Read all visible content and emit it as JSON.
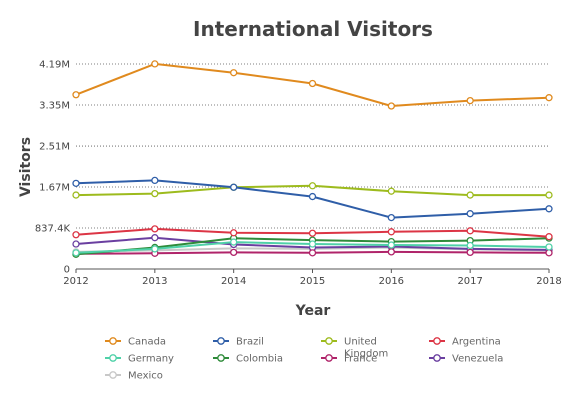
{
  "chart_data": {
    "type": "line",
    "title": "International Visitors",
    "xlabel": "Year",
    "ylabel": "Visitors",
    "x": [
      "2012",
      "2013",
      "2014",
      "2015",
      "2016",
      "2017",
      "2018"
    ],
    "ylim": [
      0,
      4188000
    ],
    "yticks": [
      0,
      837400,
      1675000,
      2512000,
      3350000,
      4188000
    ],
    "ytick_labels": [
      "0",
      "837.4K",
      "1.67M",
      "2.51M",
      "3.35M",
      "4.19M"
    ],
    "grid": true,
    "legend_position": "bottom",
    "series": [
      {
        "name": "Canada",
        "color": "#e08a1e",
        "values": [
          3560000,
          4190000,
          4010000,
          3790000,
          3330000,
          3440000,
          3500000
        ]
      },
      {
        "name": "Brazil",
        "color": "#2f5ea8",
        "values": [
          1750000,
          1810000,
          1670000,
          1480000,
          1050000,
          1130000,
          1230000
        ]
      },
      {
        "name": "United Kingdom",
        "color": "#9dbb1d",
        "values": [
          1510000,
          1540000,
          1670000,
          1700000,
          1590000,
          1510000,
          1510000
        ]
      },
      {
        "name": "Argentina",
        "color": "#dc3545",
        "values": [
          700000,
          820000,
          740000,
          730000,
          760000,
          780000,
          660000
        ]
      },
      {
        "name": "Germany",
        "color": "#4fd1a8",
        "values": [
          330000,
          410000,
          550000,
          510000,
          490000,
          480000,
          450000
        ]
      },
      {
        "name": "Colombia",
        "color": "#2e8b3a",
        "values": [
          300000,
          440000,
          630000,
          590000,
          560000,
          580000,
          630000
        ]
      },
      {
        "name": "France",
        "color": "#b0246a",
        "values": [
          310000,
          320000,
          340000,
          330000,
          350000,
          340000,
          330000
        ]
      },
      {
        "name": "Venezuela",
        "color": "#6a3fa0",
        "values": [
          510000,
          640000,
          500000,
          440000,
          460000,
          410000,
          390000
        ]
      },
      {
        "name": "Mexico",
        "color": "#c8c8c8",
        "values": [
          350000,
          380000,
          420000,
          410000,
          440000,
          400000,
          380000
        ]
      }
    ]
  }
}
